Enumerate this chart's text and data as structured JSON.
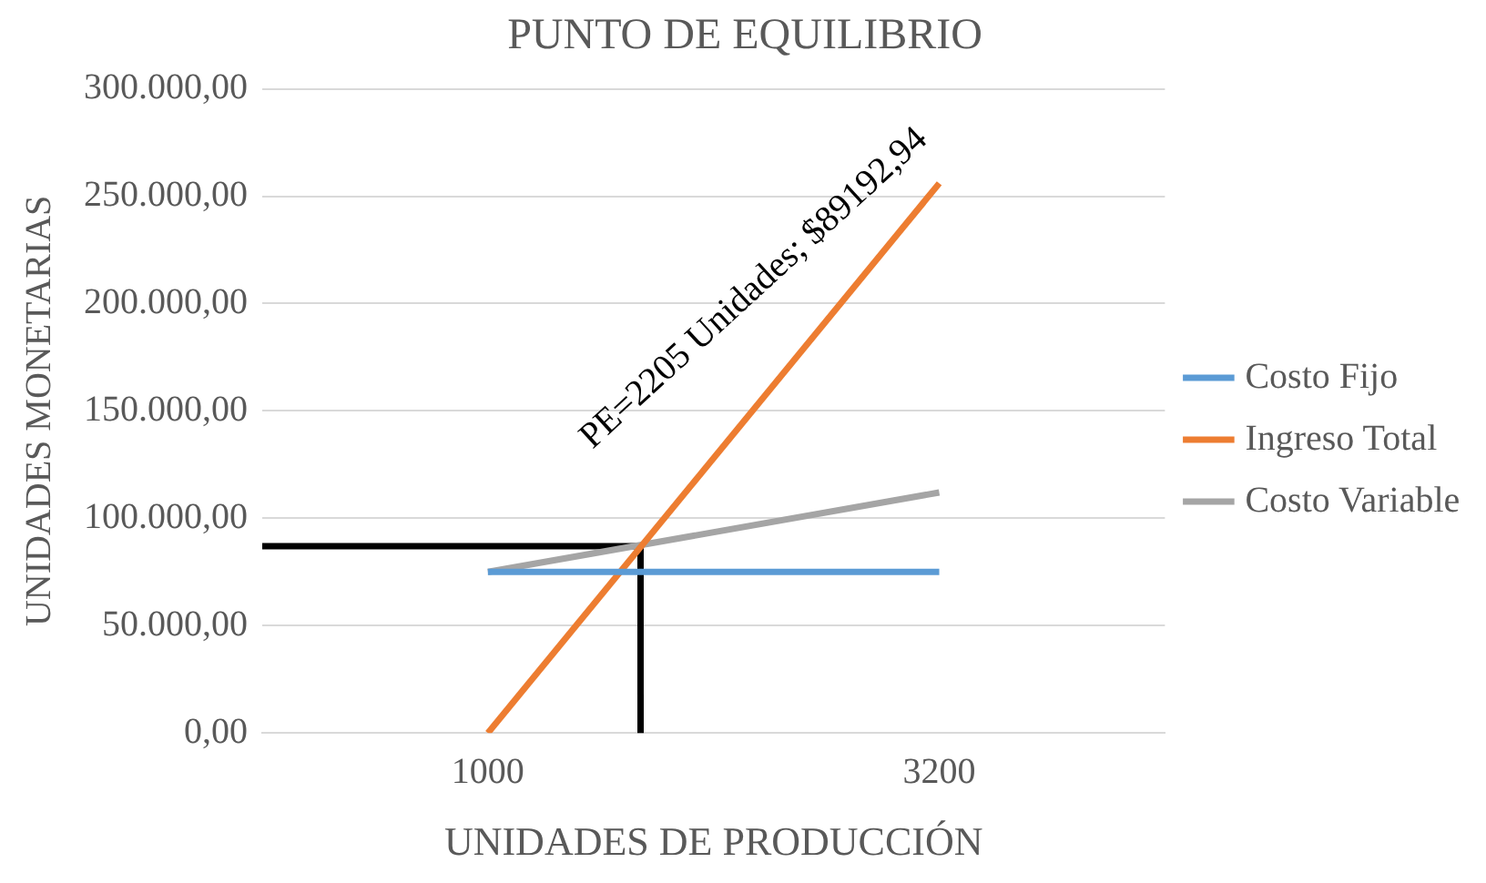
{
  "chart_data": {
    "type": "line",
    "title": "PUNTO DE EQUILIBRIO",
    "xlabel": "UNIDADES DE PRODUCCIÓN",
    "ylabel": "UNIDADES MONETARIAS",
    "xlim": [
      -100,
      4300
    ],
    "xticks": [
      1000,
      3200
    ],
    "ylim": [
      0,
      300000
    ],
    "yticks": [
      {
        "value": 0,
        "label": "0,00"
      },
      {
        "value": 50000,
        "label": "50.000,00"
      },
      {
        "value": 100000,
        "label": "100.000,00"
      },
      {
        "value": 150000,
        "label": "150.000,00"
      },
      {
        "value": 200000,
        "label": "200.000,00"
      },
      {
        "value": 250000,
        "label": "250.000,00"
      },
      {
        "value": 300000,
        "label": "300.000,00"
      }
    ],
    "grid": "y",
    "legend": "right",
    "marker": "none",
    "line_style": "solid",
    "annotations": [
      "PE=2205 Unidades; $89192,94"
    ],
    "series": [
      {
        "name": "Costo Fijo",
        "color": "#5b9bd5",
        "x": [
          1000,
          3200
        ],
        "values": [
          75000,
          75000
        ]
      },
      {
        "name": "Ingreso Total",
        "color": "#ed7d31",
        "x": [
          1000,
          3200
        ],
        "values": [
          0,
          256000
        ]
      },
      {
        "name": "Costo Variable",
        "color": "#a5a5a5",
        "x": [
          1000,
          3200
        ],
        "values": [
          75000,
          112000
        ]
      },
      {
        "color": "#000000",
        "x": [
          -100,
          1744,
          1744
        ],
        "values": [
          87000,
          87000,
          0
        ]
      }
    ]
  }
}
